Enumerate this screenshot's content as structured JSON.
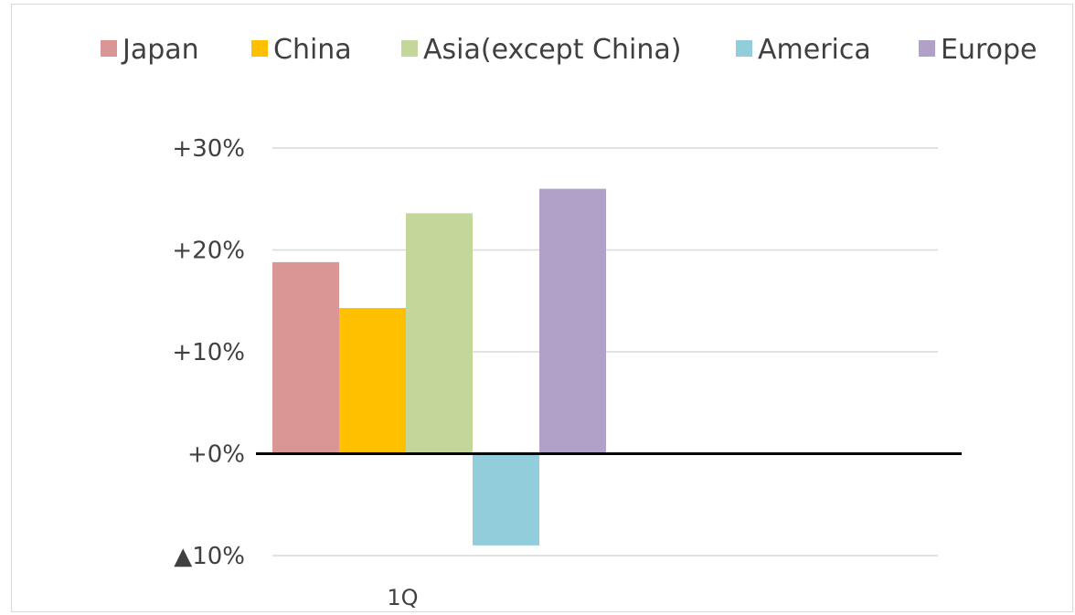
{
  "chart_data": {
    "type": "bar",
    "categories": [
      "1Q"
    ],
    "series": [
      {
        "name": "Japan",
        "values": [
          18.8
        ],
        "color": "#D99694"
      },
      {
        "name": "China",
        "values": [
          14.3
        ],
        "color": "#FFC000"
      },
      {
        "name": "Asia(except China)",
        "values": [
          23.6
        ],
        "color": "#C4D79B"
      },
      {
        "name": "America",
        "values": [
          -9.0
        ],
        "color": "#92CDDC"
      },
      {
        "name": "Europe",
        "values": [
          26.0
        ],
        "color": "#B1A0C7"
      }
    ],
    "ylim": [
      -10,
      30
    ],
    "yticks": [
      {
        "value": 30,
        "label": "+30%"
      },
      {
        "value": 20,
        "label": "+20%"
      },
      {
        "value": 10,
        "label": "+10%"
      },
      {
        "value": 0,
        "label": "+0%"
      },
      {
        "value": -10,
        "label": "▲10%"
      }
    ],
    "grid": true,
    "legend_position": "top"
  }
}
